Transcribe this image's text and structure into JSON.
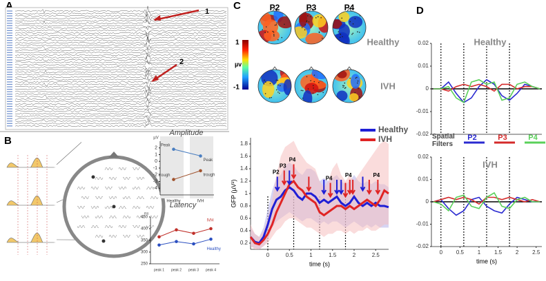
{
  "panels": {
    "A": {
      "label": "A",
      "arrows": [
        "1",
        "2"
      ]
    },
    "B": {
      "label": "B"
    },
    "C": {
      "label": "C",
      "topo_columns": [
        "P2",
        "P3",
        "P4"
      ],
      "topo_rows": [
        "Healthy",
        "IVH"
      ],
      "colorbar": {
        "max": "1",
        "unit": "µv",
        "min": "-1"
      }
    },
    "D": {
      "label": "D",
      "legend_title": "Spatial Filters"
    }
  },
  "chart_data": [
    {
      "type": "line",
      "ylabel": "GFP (µV²)",
      "xlabel": "time (s)",
      "x": [
        -0.4,
        -0.3,
        -0.2,
        -0.1,
        0,
        0.1,
        0.2,
        0.3,
        0.4,
        0.5,
        0.6,
        0.7,
        0.8,
        0.9,
        1.0,
        1.1,
        1.2,
        1.3,
        1.4,
        1.5,
        1.6,
        1.7,
        1.8,
        1.9,
        2.0,
        2.1,
        2.2,
        2.3,
        2.4,
        2.5,
        2.6,
        2.7,
        2.8
      ],
      "xlim": [
        -0.4,
        2.8
      ],
      "ylim": [
        0.1,
        1.9
      ],
      "xticks": [
        0,
        0.5,
        1,
        1.5,
        2,
        2.5
      ],
      "yticks": [
        0.2,
        0.4,
        0.6,
        0.8,
        1,
        1.2,
        1.4,
        1.6,
        1.8
      ],
      "vlines": [
        0,
        0.6,
        1.2,
        1.8
      ],
      "series": [
        {
          "name": "Healthy",
          "color": "#1f1fd6",
          "band_color": "#b4b0ea",
          "values": [
            0.3,
            0.22,
            0.2,
            0.3,
            0.5,
            0.75,
            0.9,
            0.95,
            1.05,
            1.1,
            1.05,
            0.95,
            0.9,
            1.0,
            1.0,
            0.95,
            0.85,
            0.9,
            0.85,
            0.9,
            0.95,
            0.85,
            0.8,
            0.85,
            0.95,
            0.85,
            0.8,
            0.85,
            0.8,
            0.85,
            0.8,
            0.8,
            0.78
          ],
          "band": {
            "lower": [
              0.15,
              0.12,
              0.1,
              0.15,
              0.25,
              0.45,
              0.55,
              0.6,
              0.65,
              0.7,
              0.65,
              0.6,
              0.55,
              0.6,
              0.6,
              0.55,
              0.5,
              0.55,
              0.5,
              0.55,
              0.55,
              0.5,
              0.45,
              0.5,
              0.55,
              0.5,
              0.45,
              0.5,
              0.45,
              0.5,
              0.45,
              0.45,
              0.45
            ],
            "upper": [
              0.45,
              0.35,
              0.3,
              0.45,
              0.75,
              1.05,
              1.25,
              1.3,
              1.45,
              1.5,
              1.45,
              1.35,
              1.3,
              1.4,
              1.4,
              1.35,
              1.2,
              1.25,
              1.2,
              1.25,
              1.3,
              1.2,
              1.15,
              1.2,
              1.3,
              1.2,
              1.15,
              1.2,
              1.15,
              1.2,
              1.15,
              1.15,
              1.1
            ]
          }
        },
        {
          "name": "IVH",
          "color": "#e02424",
          "band_color": "#f6c0c0",
          "values": [
            0.3,
            0.2,
            0.18,
            0.25,
            0.35,
            0.5,
            0.7,
            0.85,
            1.0,
            1.15,
            1.2,
            1.1,
            1.05,
            0.95,
            0.9,
            0.85,
            0.7,
            0.65,
            0.7,
            0.75,
            0.8,
            0.8,
            0.75,
            0.8,
            0.75,
            0.8,
            0.85,
            0.9,
            0.85,
            0.8,
            0.9,
            1.05,
            1.0
          ],
          "band": {
            "lower": [
              0.15,
              0.1,
              0.1,
              0.15,
              0.2,
              0.3,
              0.4,
              0.45,
              0.55,
              0.6,
              0.6,
              0.55,
              0.5,
              0.45,
              0.45,
              0.4,
              0.35,
              0.3,
              0.35,
              0.35,
              0.4,
              0.4,
              0.35,
              0.4,
              0.35,
              0.4,
              0.4,
              0.45,
              0.4,
              0.4,
              0.45,
              0.5,
              0.5
            ],
            "upper": [
              0.5,
              0.35,
              0.3,
              0.4,
              0.6,
              0.9,
              1.3,
              1.6,
              1.75,
              1.8,
              1.85,
              1.7,
              1.6,
              1.5,
              1.45,
              1.4,
              1.2,
              1.1,
              1.2,
              1.4,
              1.5,
              1.3,
              1.2,
              1.3,
              1.2,
              1.3,
              1.4,
              1.5,
              1.6,
              1.7,
              1.8,
              1.85,
              1.8
            ]
          }
        }
      ],
      "arrows": [
        {
          "x": 0.22,
          "y": 1.05,
          "color": "#1f1fd6",
          "label": "P2"
        },
        {
          "x": 0.38,
          "y": 1.15,
          "color": "#e02424",
          "label": "P3"
        },
        {
          "x": 0.6,
          "y": 1.25,
          "color": "#e02424",
          "label": "P4"
        },
        {
          "x": 0.5,
          "y": 1.15,
          "color": "#1f1fd6"
        },
        {
          "x": 0.95,
          "y": 1.05,
          "color": "#e02424"
        },
        {
          "x": 1.3,
          "y": 1.0,
          "color": "#1f1fd6"
        },
        {
          "x": 1.45,
          "y": 0.95,
          "color": "#e02424",
          "label": "P4"
        },
        {
          "x": 1.6,
          "y": 1.0,
          "color": "#1f1fd6"
        },
        {
          "x": 1.7,
          "y": 1.0,
          "color": "#1f1fd6"
        },
        {
          "x": 1.8,
          "y": 0.95,
          "color": "#e02424"
        },
        {
          "x": 1.9,
          "y": 1.0,
          "color": "#e02424",
          "label": "P4"
        },
        {
          "x": 1.97,
          "y": 1.0,
          "color": "#e02424"
        },
        {
          "x": 2.2,
          "y": 1.05,
          "color": "#1f1fd6"
        },
        {
          "x": 2.35,
          "y": 1.0,
          "color": "#e02424"
        },
        {
          "x": 2.55,
          "y": 1.0,
          "color": "#e02424",
          "label": "P4"
        }
      ]
    },
    {
      "type": "line",
      "title": "Healthy",
      "x": [
        -0.2,
        0,
        0.2,
        0.4,
        0.6,
        0.8,
        1.0,
        1.2,
        1.4,
        1.6,
        1.8,
        2.0,
        2.2,
        2.4,
        2.6
      ],
      "xlim": [
        -0.25,
        2.65
      ],
      "ylim": [
        -0.02,
        0.02
      ],
      "yticks": [
        0.02,
        0.01,
        0,
        -0.01,
        -0.02
      ],
      "vlines": [
        0,
        0.6,
        1.2,
        1.8
      ],
      "hline": 0,
      "series": [
        {
          "name": "P2",
          "color": "#2a2ad0",
          "values": [
            0,
            0,
            0.003,
            -0.002,
            -0.006,
            -0.004,
            0.001,
            0.004,
            0.002,
            -0.003,
            -0.005,
            -0.002,
            0.002,
            0.001,
            0
          ]
        },
        {
          "name": "P3",
          "color": "#d42a2a",
          "values": [
            0,
            0,
            -0.001,
            0.001,
            0.002,
            0.001,
            0.002,
            0.001,
            -0.001,
            0.002,
            0.002,
            0,
            0.001,
            0.001,
            0
          ]
        },
        {
          "name": "P4",
          "color": "#5ad05a",
          "values": [
            0,
            0,
            0.001,
            -0.004,
            -0.006,
            0.003,
            0.004,
            0.002,
            0.003,
            -0.005,
            -0.004,
            0.002,
            0.003,
            0.001,
            0
          ]
        }
      ]
    },
    {
      "type": "line",
      "title": "IVH",
      "xlabel": "time (s)",
      "x": [
        -0.2,
        0,
        0.2,
        0.4,
        0.6,
        0.8,
        1.0,
        1.2,
        1.4,
        1.6,
        1.8,
        2.0,
        2.2,
        2.4,
        2.6
      ],
      "xlim": [
        -0.25,
        2.65
      ],
      "ylim": [
        -0.02,
        0.02
      ],
      "xticks": [
        0,
        0.5,
        1,
        1.5,
        2,
        2.5
      ],
      "yticks": [
        0.02,
        0.01,
        0,
        -0.01,
        -0.02
      ],
      "vlines": [
        0,
        0.6,
        1.2,
        1.8
      ],
      "hline": 0,
      "series": [
        {
          "color": "#2a2ad0",
          "values": [
            0,
            0.001,
            -0.003,
            -0.006,
            -0.004,
            0.001,
            0.002,
            -0.002,
            -0.004,
            -0.005,
            -0.001,
            0.002,
            0.001,
            0,
            0
          ]
        },
        {
          "color": "#d42a2a",
          "values": [
            0,
            0.001,
            0.002,
            0.001,
            0.002,
            0.001,
            -0.001,
            0.002,
            0.002,
            0.001,
            0.002,
            0.001,
            0,
            0.001,
            0
          ]
        },
        {
          "color": "#5ad05a",
          "values": [
            0,
            -0.001,
            -0.004,
            0.002,
            0.003,
            -0.002,
            -0.003,
            0.002,
            0.004,
            -0.002,
            -0.003,
            0.001,
            0.002,
            0,
            0
          ]
        }
      ]
    },
    {
      "type": "category-line",
      "title": "Amplitude",
      "ylabel": "µV",
      "categories": [
        "Healthy",
        "IVH"
      ],
      "ylim": [
        -5,
        3
      ],
      "yticks": [
        -4,
        -3,
        -2,
        -1,
        0,
        1,
        2
      ],
      "series": [
        {
          "name": "Peak",
          "color": "#4a7ec0",
          "values": [
            1.8,
            0.8
          ]
        },
        {
          "name": "trough",
          "color": "#a0522d",
          "values": [
            -2.7,
            -1.4
          ]
        }
      ]
    },
    {
      "type": "category-line",
      "title": "Latency",
      "ylabel": "ms",
      "categories": [
        "peak 1",
        "peak 2",
        "peak 3",
        "peak 4"
      ],
      "ylim": [
        250,
        450
      ],
      "yticks": [
        250,
        300,
        350,
        400,
        450
      ],
      "series": [
        {
          "name": "IVH",
          "color": "#c0302a",
          "values": [
            365,
            395,
            380,
            400
          ]
        },
        {
          "name": "Healthy",
          "color": "#2a4ec0",
          "values": [
            330,
            345,
            335,
            355
          ]
        }
      ]
    }
  ]
}
